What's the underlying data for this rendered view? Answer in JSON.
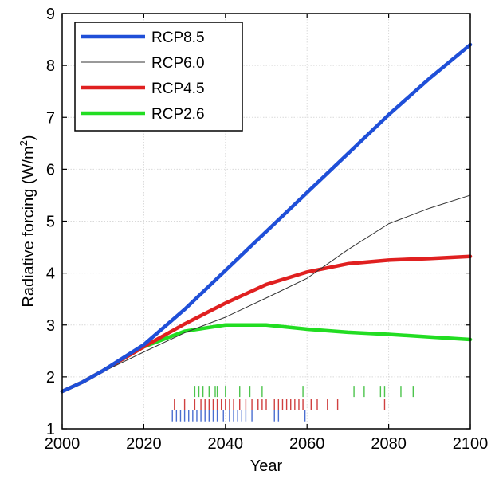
{
  "chart_data": {
    "type": "line",
    "xlabel": "Year",
    "ylabel": "Radiative forcing (W/m",
    "ylabel_sup": "2",
    "ylabel_close": ")",
    "xlim": [
      2000,
      2100
    ],
    "ylim": [
      1,
      9
    ],
    "xticks": [
      2000,
      2020,
      2040,
      2060,
      2080,
      2100
    ],
    "yticks": [
      1,
      2,
      3,
      4,
      5,
      6,
      7,
      8,
      9
    ],
    "grid": true,
    "legend_position": "top-left",
    "series": [
      {
        "name": "RCP8.5",
        "color": "#1f4fd8",
        "width": "thick",
        "x": [
          2000,
          2005,
          2010,
          2020,
          2030,
          2040,
          2050,
          2060,
          2070,
          2080,
          2090,
          2100
        ],
        "y": [
          1.72,
          1.9,
          2.12,
          2.62,
          3.3,
          4.05,
          4.8,
          5.55,
          6.3,
          7.05,
          7.75,
          8.4
        ]
      },
      {
        "name": "RCP6.0",
        "color": "#333333",
        "width": "thin",
        "x": [
          2000,
          2005,
          2010,
          2020,
          2030,
          2040,
          2050,
          2060,
          2070,
          2080,
          2090,
          2100
        ],
        "y": [
          1.72,
          1.9,
          2.1,
          2.48,
          2.85,
          3.15,
          3.52,
          3.9,
          4.45,
          4.95,
          5.25,
          5.5
        ]
      },
      {
        "name": "RCP4.5",
        "color": "#e02020",
        "width": "thick",
        "x": [
          2000,
          2005,
          2010,
          2020,
          2030,
          2040,
          2050,
          2060,
          2070,
          2080,
          2090,
          2100
        ],
        "y": [
          1.72,
          1.9,
          2.12,
          2.58,
          3.02,
          3.42,
          3.78,
          4.02,
          4.18,
          4.25,
          4.28,
          4.32
        ]
      },
      {
        "name": "RCP2.6",
        "color": "#22dd22",
        "width": "thick",
        "x": [
          2000,
          2005,
          2010,
          2020,
          2030,
          2040,
          2050,
          2060,
          2070,
          2080,
          2090,
          2100
        ],
        "y": [
          1.72,
          1.9,
          2.12,
          2.58,
          2.88,
          3.0,
          3.0,
          2.92,
          2.86,
          2.82,
          2.77,
          2.72
        ]
      }
    ],
    "rug_marks": [
      {
        "color": "#4cc44c",
        "level": 1.72,
        "years": [
          2032.5,
          2033.5,
          2034.5,
          2036,
          2037.5,
          2038,
          2040,
          2043.5,
          2046,
          2049,
          2059,
          2071.5,
          2074,
          2078,
          2079,
          2083,
          2086
        ]
      },
      {
        "color": "#d04040",
        "level": 1.47,
        "years": [
          2027.5,
          2030,
          2032.5,
          2034,
          2035,
          2036,
          2037,
          2038,
          2039,
          2040,
          2041,
          2042,
          2043.5,
          2045,
          2046.5,
          2048,
          2049,
          2050,
          2052,
          2053,
          2054,
          2055,
          2056,
          2057,
          2058,
          2059,
          2061,
          2062.5,
          2065,
          2067.5,
          2079
        ]
      },
      {
        "color": "#4a6ed0",
        "level": 1.25,
        "years": [
          2027,
          2028,
          2029,
          2030,
          2031,
          2032,
          2033,
          2034,
          2035,
          2036,
          2037,
          2038,
          2039.5,
          2041,
          2042,
          2043,
          2044,
          2045,
          2046.5,
          2052,
          2053,
          2059.5
        ]
      }
    ]
  }
}
